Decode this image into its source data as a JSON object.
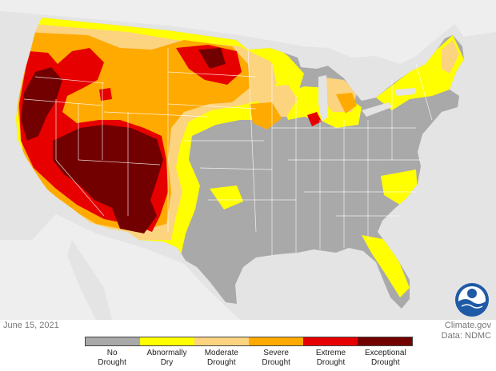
{
  "date": "June 15, 2021",
  "credit": {
    "line1": "Climate.gov",
    "line2": "Data: NDMC"
  },
  "logo_text": "NOAA",
  "colors": {
    "none": "#a9a9a9",
    "d0": "#ffff00",
    "d1": "#fcd37f",
    "d2": "#ffaa00",
    "d3": "#e60000",
    "d4": "#730000",
    "background": "#e4e4e4"
  },
  "legend": [
    {
      "line1": "No",
      "line2": "Drought",
      "color": "#a9a9a9"
    },
    {
      "line1": "Abnormally",
      "line2": "Dry",
      "color": "#ffff00"
    },
    {
      "line1": "Moderate",
      "line2": "Drought",
      "color": "#fcd37f"
    },
    {
      "line1": "Severe",
      "line2": "Drought",
      "color": "#ffaa00"
    },
    {
      "line1": "Extreme",
      "line2": "Drought",
      "color": "#e60000"
    },
    {
      "line1": "Exceptional",
      "line2": "Drought",
      "color": "#730000"
    }
  ]
}
